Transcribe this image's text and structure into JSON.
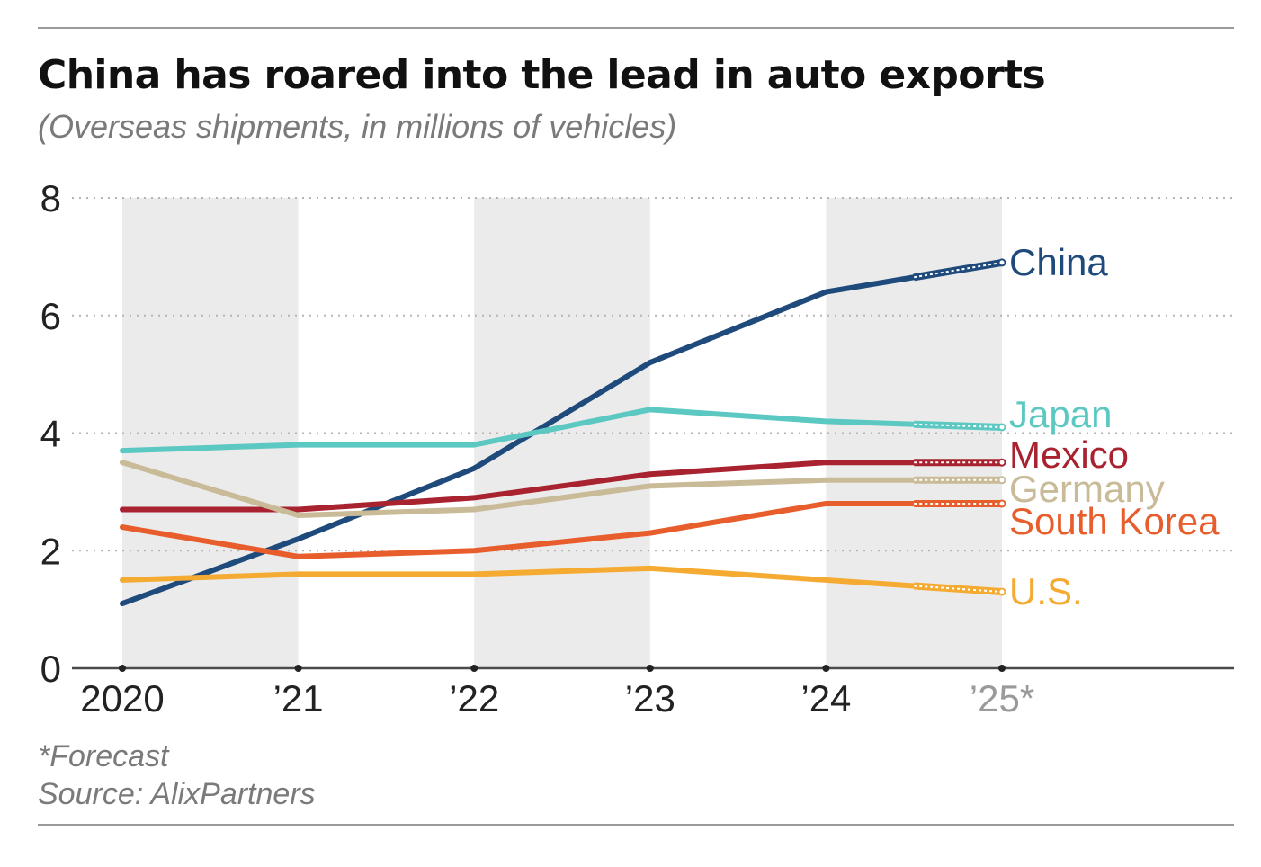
{
  "title": "China has roared into the lead in auto exports",
  "subtitle": "(Overseas shipments, in millions of vehicles)",
  "footnote": "*Forecast",
  "source": "Source: AlixPartners",
  "chart_data": {
    "type": "line",
    "categories": [
      "2020",
      "’21",
      "’22",
      "’23",
      "’24",
      "’25*"
    ],
    "forecast_from_index": 4.5,
    "ylim": [
      0,
      8
    ],
    "yticks": [
      "0",
      "2",
      "4",
      "6",
      "8"
    ],
    "grid": "dotted horizontal",
    "shaded_year_bands": [
      "2020",
      "’22",
      "’24"
    ],
    "legend": "direct labels at line ends",
    "series": [
      {
        "name": "China",
        "color": "#1f4a7c",
        "values": [
          1.1,
          2.2,
          3.4,
          5.2,
          6.4,
          6.9
        ]
      },
      {
        "name": "Japan",
        "color": "#5cc8c2",
        "values": [
          3.7,
          3.8,
          3.8,
          4.4,
          4.2,
          4.1
        ]
      },
      {
        "name": "Mexico",
        "color": "#a8222f",
        "values": [
          2.7,
          2.7,
          2.9,
          3.3,
          3.5,
          3.5
        ]
      },
      {
        "name": "Germany",
        "color": "#c9bb98",
        "values": [
          3.5,
          2.6,
          2.7,
          3.1,
          3.2,
          3.2
        ]
      },
      {
        "name": "South Korea",
        "color": "#e85d2c",
        "values": [
          2.4,
          1.9,
          2.0,
          2.3,
          2.8,
          2.8
        ]
      },
      {
        "name": "U.S.",
        "color": "#f5aa32",
        "values": [
          1.5,
          1.6,
          1.6,
          1.7,
          1.5,
          1.3
        ]
      }
    ]
  }
}
